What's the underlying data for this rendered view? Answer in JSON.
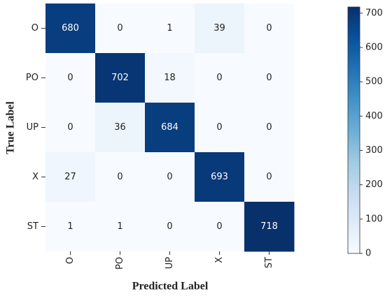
{
  "chart_data": {
    "type": "heatmap",
    "x_label": "Predicted Label",
    "y_label": "True Label",
    "x_categories": [
      "O",
      "PO",
      "UP",
      "X",
      "ST"
    ],
    "y_categories": [
      "O",
      "PO",
      "UP",
      "X",
      "ST"
    ],
    "z": [
      [
        680,
        0,
        1,
        39,
        0
      ],
      [
        0,
        702,
        18,
        0,
        0
      ],
      [
        0,
        36,
        684,
        0,
        0
      ],
      [
        27,
        0,
        0,
        693,
        0
      ],
      [
        1,
        1,
        0,
        0,
        718
      ]
    ],
    "zlim": [
      0,
      718
    ],
    "colorbar_ticks": [
      0,
      100,
      200,
      300,
      400,
      500,
      600,
      700
    ],
    "colormap": [
      "#f7fbff",
      "#deebf7",
      "#c6dbef",
      "#9ecae1",
      "#6baed6",
      "#4292c6",
      "#2171b5",
      "#08519c",
      "#08306b"
    ]
  }
}
